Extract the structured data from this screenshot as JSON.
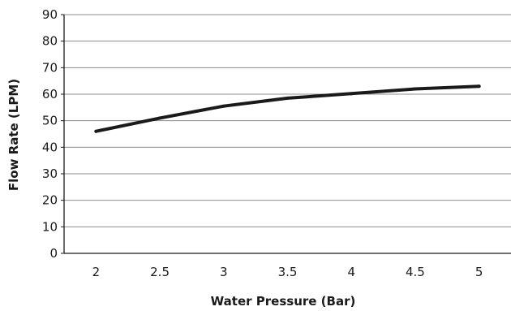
{
  "chart_data": {
    "type": "line",
    "title": "",
    "xlabel": "Water Pressure (Bar)",
    "ylabel": "Flow Rate (LPM)",
    "x": [
      2,
      2.5,
      3,
      3.5,
      4,
      4.5,
      5
    ],
    "x_tick_labels": [
      "2",
      "2.5",
      "3",
      "3.5",
      "4",
      "4.5",
      "5"
    ],
    "y_ticks": [
      0,
      10,
      20,
      30,
      40,
      50,
      60,
      70,
      80,
      90
    ],
    "y_tick_labels": [
      "0",
      "10",
      "20",
      "30",
      "40",
      "50",
      "60",
      "70",
      "80",
      "90"
    ],
    "xlim": [
      1.75,
      5.25
    ],
    "ylim": [
      0,
      90
    ],
    "grid": "horizontal",
    "legend": "none",
    "series": [
      {
        "values": [
          46,
          51,
          55.5,
          58.5,
          60.2,
          62,
          63
        ]
      }
    ],
    "colors": {
      "line": "#1a1a1a",
      "grid": "#8c8c8c",
      "axis": "#1a1a1a",
      "background": "#ffffff"
    }
  }
}
